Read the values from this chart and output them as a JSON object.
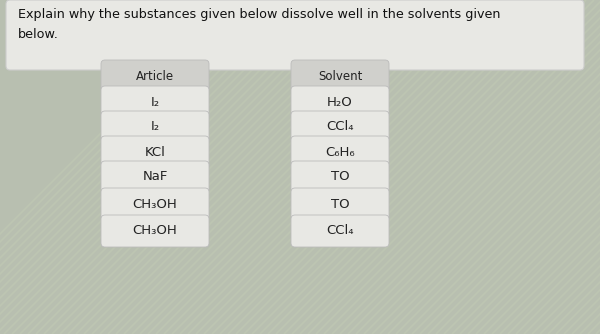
{
  "title_line1": "Explain why the substances given below dissolve well in the solvents given",
  "title_line2": "below.",
  "bg_stripe_color1": "#c8c4b8",
  "bg_stripe_color2": "#b8c4b0",
  "top_box_color": "#e8e8e4",
  "pill_bg_color": "#e8e8e4",
  "pill_text_color": "#222222",
  "header_pill_color": "#d0d0cc",
  "bullet_color": "#444466",
  "articles": [
    "I₂",
    "I₂",
    "KCl",
    "NaF",
    "CH₃OH",
    "CH₃OH"
  ],
  "solvents": [
    "H₂O",
    "CCl₄",
    "C₆H₆",
    "TO",
    "TO",
    "CCl₄"
  ],
  "article_header": "Article",
  "solvent_header": "Solvent",
  "figw": 6.0,
  "figh": 3.34,
  "dpi": 100
}
